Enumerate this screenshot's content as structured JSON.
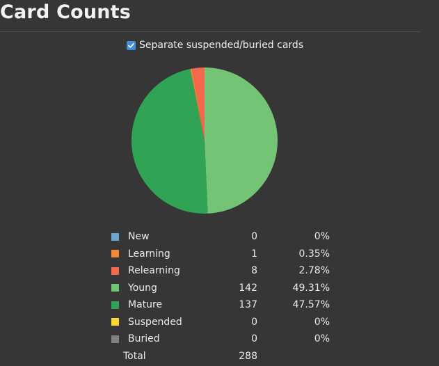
{
  "header": {
    "title": "Card Counts"
  },
  "options": {
    "separate_label": "Separate suspended/buried cards",
    "separate_checked": true
  },
  "chart_data": {
    "type": "pie",
    "categories": [
      "New",
      "Learning",
      "Relearning",
      "Young",
      "Mature",
      "Suspended",
      "Buried"
    ],
    "values": [
      0,
      1,
      8,
      142,
      137,
      0,
      0
    ],
    "colors": [
      "#6ba6d3",
      "#f28a3a",
      "#f4694e",
      "#74c476",
      "#31a354",
      "#fdd835",
      "#808080"
    ],
    "start_series": "Young"
  },
  "legend": {
    "rows": [
      {
        "label": "New",
        "count": "0",
        "percent": "0%",
        "color": "#6ba6d3"
      },
      {
        "label": "Learning",
        "count": "1",
        "percent": "0.35%",
        "color": "#f28a3a"
      },
      {
        "label": "Relearning",
        "count": "8",
        "percent": "2.78%",
        "color": "#f4694e"
      },
      {
        "label": "Young",
        "count": "142",
        "percent": "49.31%",
        "color": "#74c476"
      },
      {
        "label": "Mature",
        "count": "137",
        "percent": "47.57%",
        "color": "#31a354"
      },
      {
        "label": "Suspended",
        "count": "0",
        "percent": "0%",
        "color": "#fdd835"
      },
      {
        "label": "Buried",
        "count": "0",
        "percent": "0%",
        "color": "#808080"
      }
    ],
    "total_label": "Total",
    "total_count": "288"
  }
}
